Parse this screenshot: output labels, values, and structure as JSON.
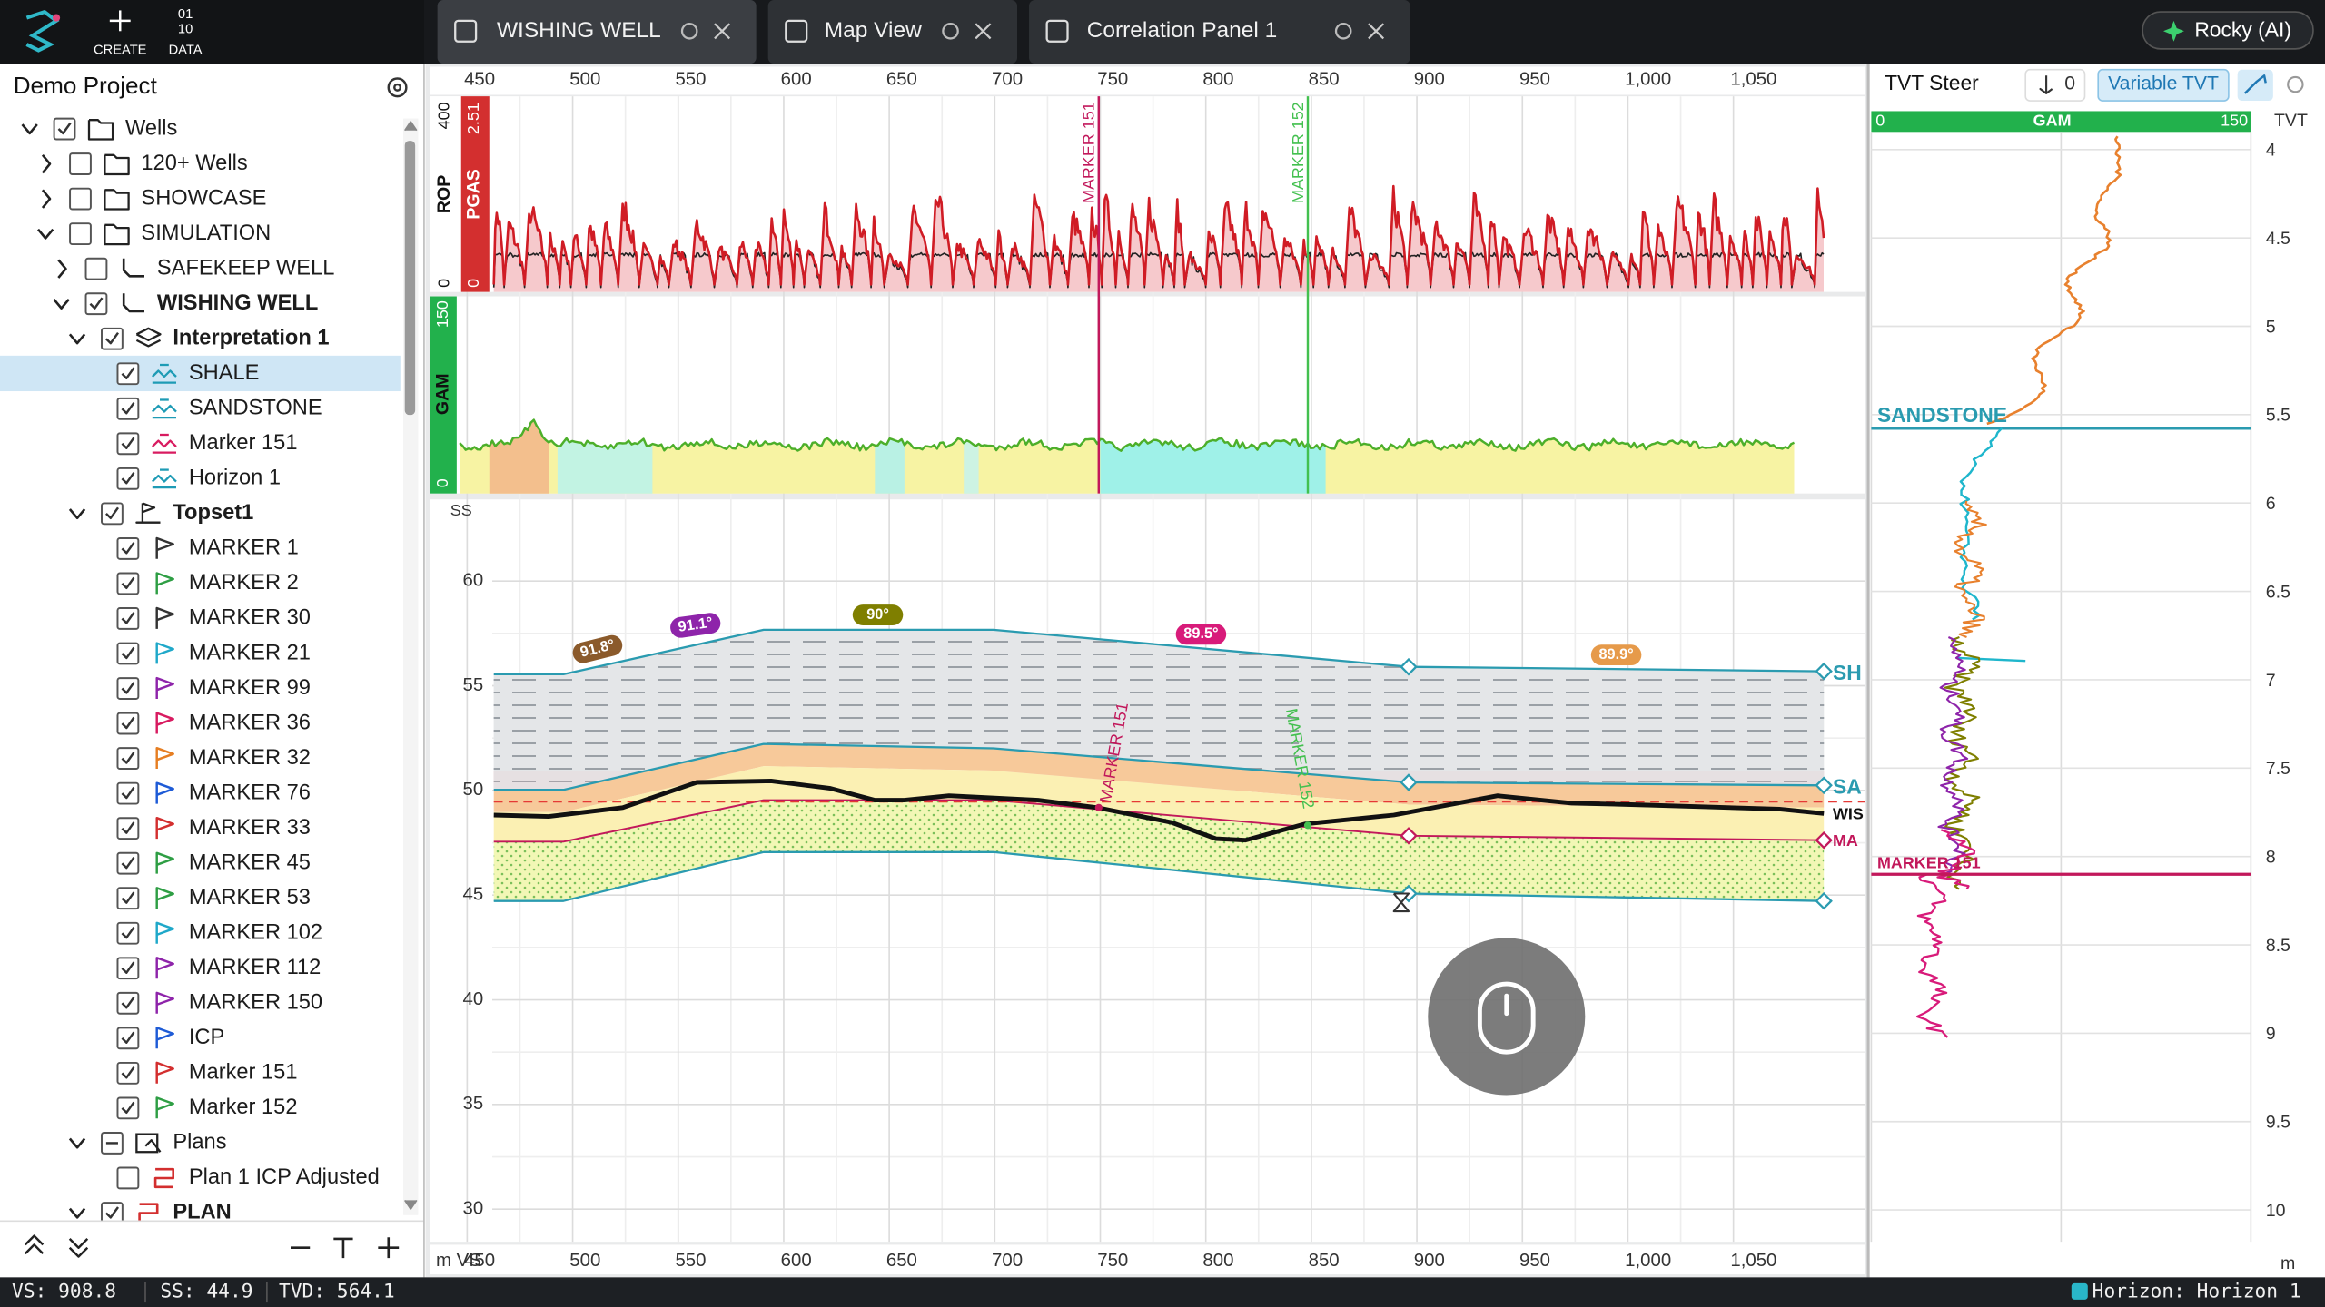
{
  "header": {
    "create": "CREATE",
    "data_icon": [
      "01",
      "10"
    ],
    "data": "DATA",
    "ai": "Rocky (AI)"
  },
  "tabs": [
    "WISHING WELL",
    "Map View",
    "Correlation Panel 1"
  ],
  "sidebar": {
    "title": "Demo Project",
    "tree": [
      "Wells",
      "120+ Wells",
      "SHOWCASE",
      "SIMULATION",
      "SAFEKEEP WELL",
      "WISHING WELL",
      "Interpretation 1",
      "SHALE",
      "SANDSTONE",
      "Marker 151",
      "Horizon 1",
      "Topset1",
      "MARKER 1",
      "MARKER 2",
      "MARKER 30",
      "MARKER 21",
      "MARKER 99",
      "MARKER 36",
      "MARKER 32",
      "MARKER 76",
      "MARKER 33",
      "MARKER 45",
      "MARKER 53",
      "MARKER 102",
      "MARKER 112",
      "MARKER 150",
      "ICP",
      "Marker 151",
      "Marker 152",
      "Plans",
      "Plan 1 ICP Adjusted",
      "PLAN"
    ]
  },
  "well_view": {
    "xlim": [
      432.4,
      1112.5
    ],
    "xticks": [
      450,
      500,
      550,
      600,
      650,
      700,
      750,
      800,
      850,
      900,
      950,
      {
        "value": 1000,
        "label": "1,000"
      },
      {
        "value": 1050,
        "label": "1,050"
      }
    ],
    "x_unit": "m VS",
    "rop_track": {
      "name": "ROP",
      "max": "400",
      "min": "0"
    },
    "pgas_track": {
      "name": "PGAS",
      "max": "2.51",
      "min": "0"
    },
    "gam_track": {
      "name": "GAM",
      "max": "150",
      "min": "0"
    },
    "y_label": "SS",
    "ylim": [
      28.44,
      63.9
    ],
    "yticks": [
      60,
      55,
      50,
      45,
      40,
      35,
      30
    ],
    "markers": [
      "MARKER 151",
      "MARKER 152"
    ],
    "dips": [
      "91.8°",
      "91.1°",
      "90°",
      "89.5°",
      "89.9°"
    ],
    "layer_tags": [
      "SH",
      "SA",
      "WIS",
      "MA"
    ]
  },
  "tvt_panel": {
    "title": "TVT Steer",
    "anchor_count": "0",
    "mode": "Variable TVT",
    "gam_track": {
      "min": "0",
      "name": "GAM",
      "max": "150"
    },
    "axis_label": "TVT",
    "ylim": [
      3.9,
      10.18
    ],
    "yticks": [
      4,
      4.5,
      5,
      5.5,
      6,
      6.5,
      7,
      7.5,
      8,
      8.5,
      9,
      9.5,
      10
    ],
    "unit": "m",
    "horizons": [
      "SANDSTONE",
      "MARKER 151"
    ]
  },
  "status": {
    "vs": "VS: 908.8",
    "ss": "SS: 44.9",
    "tvd": "TVD: 564.1",
    "horizon": "Horizon: Horizon 1"
  }
}
